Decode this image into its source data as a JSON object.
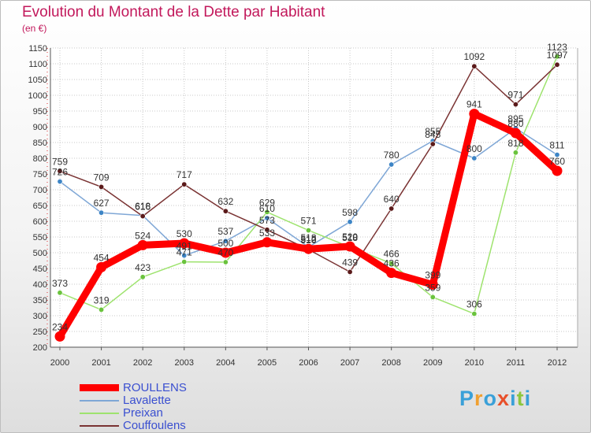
{
  "title": "Evolution du Montant de la Dette par Habitant",
  "unit": "(en €)",
  "logo": {
    "letters": [
      "P",
      "r",
      "o",
      "x",
      "i",
      "t",
      "i"
    ],
    "colors": [
      "#3aa0d8",
      "#f0a030",
      "#3aa0d8",
      "#e8502a",
      "#3aa0d8",
      "#8cc63e",
      "#3aa0d8"
    ]
  },
  "chart_data": {
    "type": "line",
    "x": [
      "2000",
      "2001",
      "2002",
      "2003",
      "2004",
      "2005",
      "2006",
      "2007",
      "2008",
      "2009",
      "2010",
      "2011",
      "2012"
    ],
    "ylim": [
      200,
      1150
    ],
    "yticks": [
      200,
      250,
      300,
      350,
      400,
      450,
      500,
      550,
      600,
      650,
      700,
      750,
      800,
      850,
      900,
      950,
      1000,
      1050,
      1100,
      1150
    ],
    "grid": true,
    "legend_position": "bottom-left",
    "series": [
      {
        "name": "ROULLENS",
        "color": "#ff0000",
        "marker": "#ff0000",
        "values": [
          234,
          454,
          524,
          530,
          500,
          533,
          512,
          520,
          436,
          399,
          941,
          880,
          760
        ]
      },
      {
        "name": "Lavalette",
        "color": "#7fa7d6",
        "marker": "#3d85c6",
        "values": [
          726,
          627,
          618,
          491,
          537,
          610,
          518,
          598,
          780,
          855,
          800,
          895,
          811
        ]
      },
      {
        "name": "Preixan",
        "color": "#9ee36e",
        "marker": "#6ac33d",
        "values": [
          373,
          319,
          423,
          471,
          470,
          629,
          571,
          518,
          466,
          359,
          306,
          818,
          1123
        ]
      },
      {
        "name": "Couffoulens",
        "color": "#7a3333",
        "marker": "#5b1a1a",
        "values": [
          759,
          709,
          616,
          717,
          632,
          573,
          510,
          439,
          640,
          845,
          1092,
          971,
          1097
        ]
      }
    ]
  }
}
